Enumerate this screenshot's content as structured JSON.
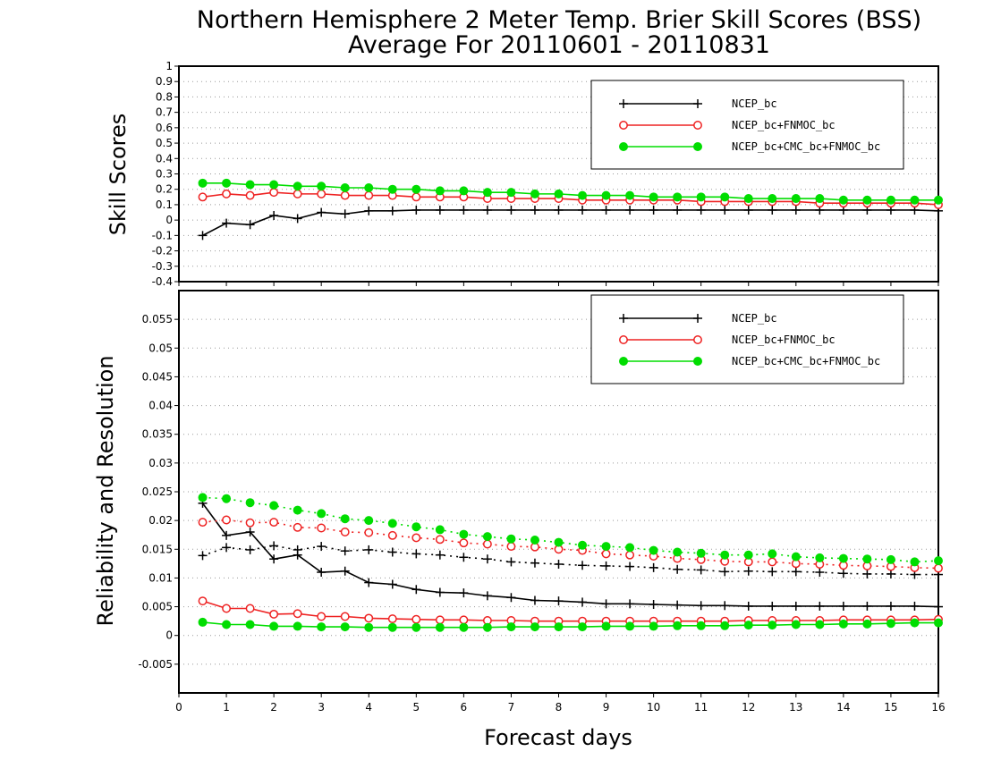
{
  "title_line1": "Northern Hemisphere 2 Meter Temp. Brier Skill Scores (BSS)",
  "title_line2": "Average For 20110601 - 20110831",
  "xlabel": "Forecast days",
  "colors": {
    "ncep": "#000000",
    "fnmoc": "#ee2222",
    "cmc": "#00dd00"
  },
  "chart_data": [
    {
      "type": "line",
      "ylabel": "Skill Scores",
      "xlim": [
        0,
        16
      ],
      "ylim": [
        -0.4,
        1
      ],
      "yticks": [
        "-0.4",
        "-0.3",
        "-0.2",
        "-0.1",
        "0",
        "0.1",
        "0.2",
        "0.3",
        "0.4",
        "0.5",
        "0.6",
        "0.7",
        "0.8",
        "0.9",
        "1"
      ],
      "xticks": [
        "0",
        "1",
        "2",
        "3",
        "4",
        "5",
        "6",
        "7",
        "8",
        "9",
        "10",
        "11",
        "12",
        "13",
        "14",
        "15",
        "16"
      ],
      "grid": true,
      "legend_position": "top-right",
      "legend": [
        "NCEP_bc",
        "NCEP_bc+FNMOC_bc",
        "NCEP_bc+CMC_bc+FNMOC_bc"
      ],
      "x": [
        0.5,
        1,
        1.5,
        2,
        2.5,
        3,
        3.5,
        4,
        4.5,
        5,
        5.5,
        6,
        6.5,
        7,
        7.5,
        8,
        8.5,
        9,
        9.5,
        10,
        10.5,
        11,
        11.5,
        12,
        12.5,
        13,
        13.5,
        14,
        14.5,
        15,
        15.5,
        16
      ],
      "series": [
        {
          "name": "NCEP_bc",
          "marker": "plus",
          "style": "solid",
          "values": [
            -0.1,
            -0.02,
            -0.03,
            0.03,
            0.01,
            0.05,
            0.04,
            0.06,
            0.06,
            0.065,
            0.065,
            0.065,
            0.065,
            0.065,
            0.065,
            0.065,
            0.065,
            0.065,
            0.065,
            0.065,
            0.065,
            0.065,
            0.065,
            0.065,
            0.065,
            0.065,
            0.065,
            0.065,
            0.065,
            0.065,
            0.065,
            0.06
          ]
        },
        {
          "name": "NCEP_bc+FNMOC_bc",
          "marker": "open-circle",
          "style": "solid",
          "values": [
            0.15,
            0.17,
            0.16,
            0.18,
            0.17,
            0.17,
            0.16,
            0.16,
            0.16,
            0.15,
            0.15,
            0.15,
            0.14,
            0.14,
            0.14,
            0.14,
            0.13,
            0.13,
            0.13,
            0.13,
            0.13,
            0.12,
            0.12,
            0.12,
            0.12,
            0.12,
            0.11,
            0.11,
            0.11,
            0.11,
            0.11,
            0.1
          ]
        },
        {
          "name": "NCEP_bc+CMC_bc+FNMOC_bc",
          "marker": "filled-circle",
          "style": "solid",
          "values": [
            0.24,
            0.24,
            0.23,
            0.23,
            0.22,
            0.22,
            0.21,
            0.21,
            0.2,
            0.2,
            0.19,
            0.19,
            0.18,
            0.18,
            0.17,
            0.17,
            0.16,
            0.16,
            0.16,
            0.15,
            0.15,
            0.15,
            0.15,
            0.14,
            0.14,
            0.14,
            0.14,
            0.13,
            0.13,
            0.13,
            0.13,
            0.13
          ]
        }
      ]
    },
    {
      "type": "line",
      "ylabel": "Reliability and Resolution",
      "xlim": [
        0,
        16
      ],
      "ylim": [
        -0.01,
        0.06
      ],
      "yticks": [
        "-0.005",
        "0",
        "0.005",
        "0.01",
        "0.015",
        "0.02",
        "0.025",
        "0.03",
        "0.035",
        "0.04",
        "0.045",
        "0.05",
        "0.055"
      ],
      "xticks": [
        "0",
        "1",
        "2",
        "3",
        "4",
        "5",
        "6",
        "7",
        "8",
        "9",
        "10",
        "11",
        "12",
        "13",
        "14",
        "15",
        "16"
      ],
      "grid": true,
      "legend_position": "top-right",
      "legend": [
        "NCEP_bc",
        "NCEP_bc+FNMOC_bc",
        "NCEP_bc+CMC_bc+FNMOC_bc"
      ],
      "x": [
        0.5,
        1,
        1.5,
        2,
        2.5,
        3,
        3.5,
        4,
        4.5,
        5,
        5.5,
        6,
        6.5,
        7,
        7.5,
        8,
        8.5,
        9,
        9.5,
        10,
        10.5,
        11,
        11.5,
        12,
        12.5,
        13,
        13.5,
        14,
        14.5,
        15,
        15.5,
        16
      ],
      "series": [
        {
          "name": "NCEP_bc",
          "metric": "reliability",
          "marker": "plus",
          "style": "solid",
          "values": [
            0.023,
            0.0174,
            0.018,
            0.0133,
            0.014,
            0.011,
            0.0112,
            0.0092,
            0.0089,
            0.008,
            0.0075,
            0.0074,
            0.0069,
            0.0066,
            0.0061,
            0.006,
            0.0058,
            0.0055,
            0.0055,
            0.0054,
            0.0053,
            0.0052,
            0.0052,
            0.0051,
            0.0051,
            0.0051,
            0.0051,
            0.0051,
            0.0051,
            0.0051,
            0.0051,
            0.005
          ]
        },
        {
          "name": "NCEP_bc",
          "metric": "resolution",
          "marker": "plus",
          "style": "dotted",
          "values": [
            0.0139,
            0.0153,
            0.0149,
            0.0156,
            0.0149,
            0.0155,
            0.0147,
            0.0149,
            0.0145,
            0.0142,
            0.014,
            0.0136,
            0.0133,
            0.0128,
            0.0126,
            0.0124,
            0.0122,
            0.0121,
            0.012,
            0.0118,
            0.0115,
            0.0114,
            0.0111,
            0.0112,
            0.0111,
            0.0111,
            0.011,
            0.0108,
            0.0107,
            0.0107,
            0.0106,
            0.0106
          ]
        },
        {
          "name": "NCEP_bc+FNMOC_bc",
          "metric": "reliability",
          "marker": "open-circle",
          "style": "solid",
          "values": [
            0.006,
            0.0047,
            0.0047,
            0.0037,
            0.0038,
            0.0033,
            0.0033,
            0.003,
            0.0029,
            0.0028,
            0.0027,
            0.0027,
            0.0026,
            0.0026,
            0.0025,
            0.0025,
            0.0025,
            0.0025,
            0.0025,
            0.0025,
            0.0025,
            0.0025,
            0.0025,
            0.0026,
            0.0026,
            0.0026,
            0.0026,
            0.0027,
            0.0027,
            0.0027,
            0.0027,
            0.0028
          ]
        },
        {
          "name": "NCEP_bc+FNMOC_bc",
          "metric": "resolution",
          "marker": "open-circle",
          "style": "dotted",
          "values": [
            0.0197,
            0.0201,
            0.0196,
            0.0197,
            0.0188,
            0.0187,
            0.018,
            0.0179,
            0.0174,
            0.017,
            0.0167,
            0.0161,
            0.0159,
            0.0155,
            0.0154,
            0.015,
            0.0148,
            0.0142,
            0.014,
            0.0138,
            0.0134,
            0.0132,
            0.0129,
            0.0128,
            0.0128,
            0.0125,
            0.0124,
            0.0122,
            0.0121,
            0.012,
            0.0118,
            0.0117
          ]
        },
        {
          "name": "NCEP_bc+CMC_bc+FNMOC_bc",
          "metric": "reliability",
          "marker": "filled-circle",
          "style": "solid",
          "values": [
            0.0023,
            0.0019,
            0.0019,
            0.0016,
            0.0016,
            0.0015,
            0.0015,
            0.0014,
            0.0014,
            0.0014,
            0.0014,
            0.0014,
            0.0014,
            0.0015,
            0.0015,
            0.0015,
            0.0015,
            0.0016,
            0.0016,
            0.0016,
            0.0017,
            0.0017,
            0.0017,
            0.0018,
            0.0018,
            0.0019,
            0.0019,
            0.002,
            0.002,
            0.0021,
            0.0022,
            0.0022
          ]
        },
        {
          "name": "NCEP_bc+CMC_bc+FNMOC_bc",
          "metric": "resolution",
          "marker": "filled-circle",
          "style": "dotted",
          "values": [
            0.024,
            0.0238,
            0.0231,
            0.0226,
            0.0218,
            0.0212,
            0.0203,
            0.02,
            0.0195,
            0.0189,
            0.0184,
            0.0176,
            0.0172,
            0.0168,
            0.0166,
            0.0162,
            0.0157,
            0.0155,
            0.0153,
            0.0148,
            0.0145,
            0.0143,
            0.014,
            0.014,
            0.0142,
            0.0137,
            0.0135,
            0.0134,
            0.0133,
            0.0132,
            0.0128,
            0.013
          ]
        }
      ]
    }
  ]
}
